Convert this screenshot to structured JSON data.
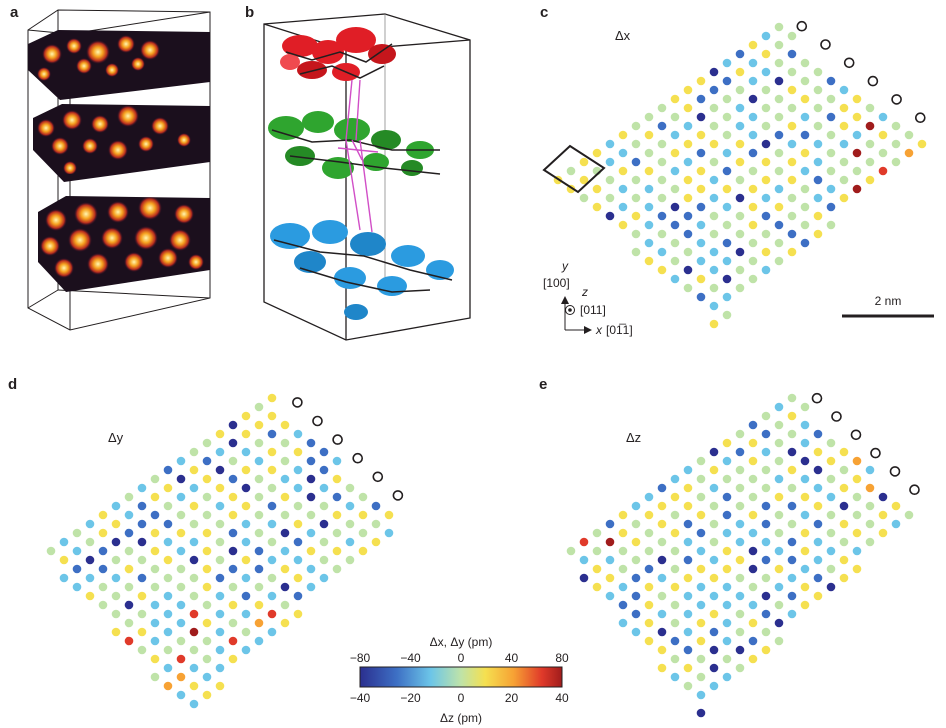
{
  "panels": {
    "a": "a",
    "b": "b",
    "c": "c",
    "d": "d",
    "e": "e"
  },
  "panel_c": {
    "component_label": "Δx",
    "axes": {
      "y_label": "y",
      "y_dir": "[100]",
      "z_label": "z",
      "z_dir": "[011]",
      "x_label": "x",
      "x_dir": "[01̅1]"
    },
    "scale_bar": "2 nm"
  },
  "panel_d": {
    "component_label": "Δy"
  },
  "panel_e": {
    "component_label": "Δz"
  },
  "colorbar": {
    "top_title": "Δx, Δy (pm)",
    "top_ticks": [
      "−80",
      "−40",
      "0",
      "40",
      "80"
    ],
    "bottom_ticks": [
      "−40",
      "−20",
      "0",
      "20",
      "40"
    ],
    "bottom_title": "Δz (pm)",
    "colors": [
      "#2b2f8f",
      "#3d6fc4",
      "#6cc5e8",
      "#bfe3a8",
      "#f5e050",
      "#f7a234",
      "#e03a2a",
      "#a01c1c"
    ]
  },
  "colors": {
    "panel_b_top": "#e01e26",
    "panel_b_middle": "#2fa52f",
    "panel_b_bottom": "#2b9be0",
    "bond_highlight": "#d14fc7"
  }
}
